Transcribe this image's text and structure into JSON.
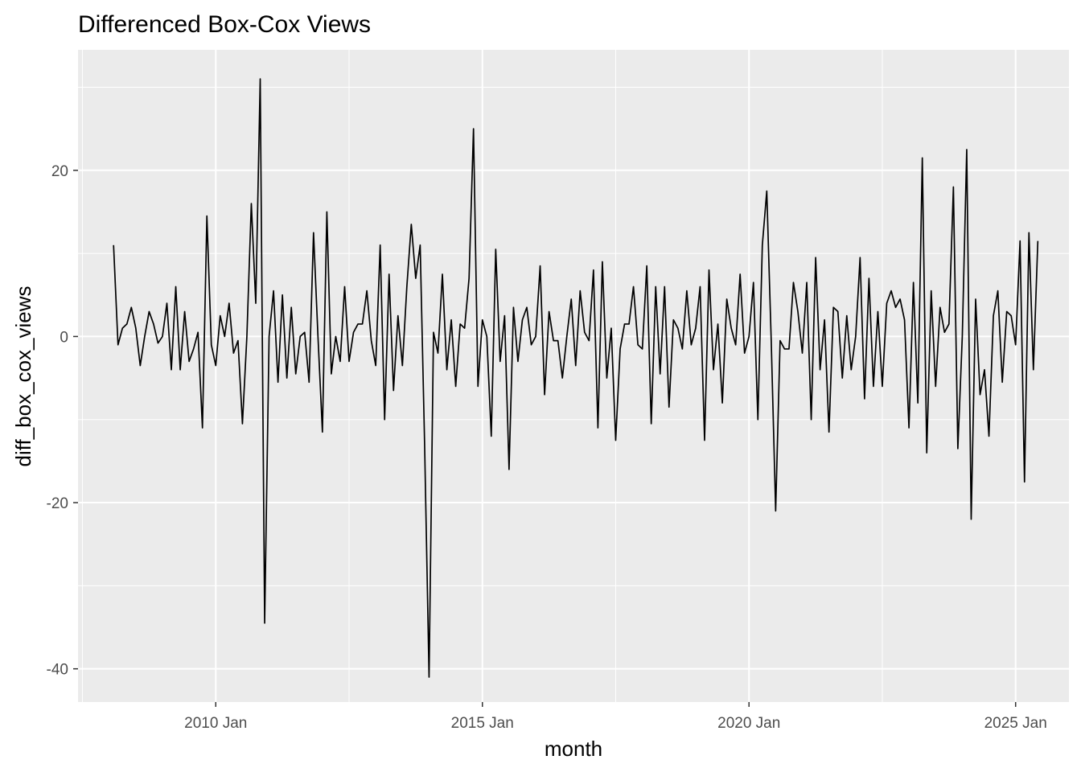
{
  "chart_data": {
    "type": "line",
    "title": "Differenced Box-Cox Views",
    "xlabel": "month",
    "ylabel": "diff_box_cox_views",
    "x_start": "2008 Feb",
    "x_tick_labels": [
      "2010 Jan",
      "2015 Jan",
      "2020 Jan",
      "2025 Jan"
    ],
    "xlim": [
      "2007 Jun",
      "2026 Jan"
    ],
    "y_ticks": [
      -40,
      -20,
      0,
      20
    ],
    "y_tick_labels": [
      "-40",
      "-20",
      "0",
      "20"
    ],
    "ylim": [
      -44,
      34.5
    ],
    "grid": true,
    "legend": "none",
    "colors": {
      "panel": "#ebebeb",
      "grid": "#ffffff",
      "line": "#000000"
    },
    "series": [
      {
        "values": [
          11,
          -1,
          1,
          1.5,
          3.5,
          1,
          -3.5,
          0,
          3,
          1.5,
          -0.8,
          0,
          4,
          -4,
          6,
          -4,
          3,
          -3,
          -1.5,
          0.5,
          -11,
          14.5,
          -1,
          -3.5,
          2.5,
          0,
          4,
          -2,
          -0.5,
          -10.5,
          0,
          16,
          4,
          31,
          -34.5,
          0,
          5.5,
          -5.5,
          5,
          -5,
          3.5,
          -4.5,
          0,
          0.5,
          -5.5,
          12.5,
          0,
          -11.5,
          15,
          -4.5,
          0,
          -3,
          6,
          -3,
          0.5,
          1.5,
          1.5,
          5.5,
          -0.5,
          -3.5,
          11,
          -10,
          7.5,
          -6.5,
          2.5,
          -3.5,
          6,
          13.5,
          7,
          11,
          -13,
          -41,
          0.5,
          -2,
          7.5,
          -4,
          2,
          -6,
          1.5,
          1,
          7,
          25,
          -6,
          2,
          0,
          -12,
          10.5,
          -3,
          2.5,
          -16,
          3.5,
          -3,
          2,
          3.5,
          -1,
          0,
          8.5,
          -7,
          3,
          -0.5,
          -0.5,
          -5,
          0,
          4.5,
          -3.5,
          5.5,
          0.5,
          -0.5,
          8,
          -11,
          9,
          -5,
          1,
          -12.5,
          -1.5,
          1.5,
          1.5,
          6,
          -1,
          -1.5,
          8.5,
          -10.5,
          6,
          -4.5,
          6,
          -8.5,
          2,
          1,
          -1.5,
          5.5,
          -1,
          1,
          6,
          -12.5,
          8,
          -4,
          1.5,
          -8,
          4.5,
          1,
          -1,
          7.5,
          -2,
          0,
          6.5,
          -10,
          11,
          17.5,
          -0.5,
          -21,
          -0.5,
          -1.5,
          -1.5,
          6.5,
          3,
          -2,
          6.5,
          -10,
          9.5,
          -4,
          2,
          -11.5,
          3.5,
          3,
          -5,
          2.5,
          -4,
          0,
          9.5,
          -7.5,
          7,
          -6,
          3,
          -6,
          4,
          5.5,
          3.5,
          4.5,
          2,
          -11,
          6.5,
          -8,
          21.5,
          -14,
          5.5,
          -6,
          3.5,
          0.5,
          1.5,
          18,
          -13.5,
          0,
          22.5,
          -22,
          4.5,
          -7,
          -4,
          -12,
          2.5,
          5.5,
          -5.5,
          3,
          2.5,
          -1,
          11.5,
          -17.5,
          12.5,
          -4,
          11.5
        ]
      }
    ]
  }
}
